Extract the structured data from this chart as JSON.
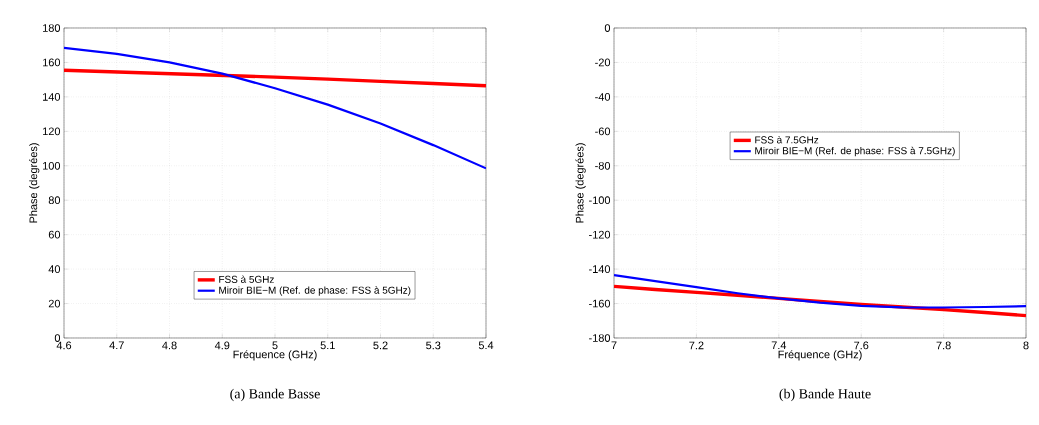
{
  "chart_data": [
    {
      "type": "line",
      "xlabel": "Fréquence (GHz)",
      "ylabel": "Phase (degrées)",
      "annotations": [
        "(a)  Bande Basse"
      ],
      "x": [
        4.6,
        4.7,
        4.8,
        4.9,
        5.0,
        5.1,
        5.2,
        5.3,
        5.4
      ],
      "series": [
        {
          "name": "FSS à 5GHz",
          "color": "#ff0000",
          "values": [
            155.5,
            154.5,
            153.5,
            152.5,
            151.5,
            150.3,
            149,
            147.8,
            146.5
          ]
        },
        {
          "name": "Miroir BIE−M (Ref. de phase: FSS à 5GHz)",
          "color": "#0000ff",
          "values": [
            168.5,
            165,
            160,
            153.5,
            145,
            135.5,
            124.5,
            112,
            98.5
          ]
        }
      ],
      "xlim": [
        4.6,
        5.4
      ],
      "xticks": [
        4.6,
        4.7,
        4.8,
        4.9,
        5,
        5.1,
        5.2,
        5.3,
        5.4
      ],
      "ylim": [
        0,
        180
      ],
      "yticks": [
        0,
        20,
        40,
        60,
        80,
        100,
        120,
        140,
        160,
        180
      ],
      "grid": true,
      "legend": "bottom",
      "line_style": "solid",
      "marker": "none"
    },
    {
      "type": "line",
      "xlabel": "Fréquence (GHz)",
      "ylabel": "Phase (degrées)",
      "annotations": [
        "(b)  Bande Haute"
      ],
      "x": [
        7.0,
        7.1,
        7.2,
        7.3,
        7.4,
        7.5,
        7.6,
        7.7,
        7.8,
        7.9,
        8.0
      ],
      "series": [
        {
          "name": "FSS à 7.5GHz",
          "color": "#ff0000",
          "values": [
            -150,
            -151.8,
            -153.5,
            -155.2,
            -157,
            -158.8,
            -160.5,
            -162,
            -163.5,
            -165.2,
            -167
          ]
        },
        {
          "name": "Miroir BIE−M (Ref. de phase: FSS à 7.5GHz)",
          "color": "#0000ff",
          "values": [
            -143.5,
            -147,
            -150.5,
            -154,
            -157,
            -159.5,
            -161.3,
            -162.2,
            -162.3,
            -162,
            -161.5
          ]
        }
      ],
      "xlim": [
        7,
        8
      ],
      "xticks": [
        7,
        7.2,
        7.4,
        7.6,
        7.8,
        8
      ],
      "ylim": [
        -180,
        0
      ],
      "yticks": [
        -180,
        -160,
        -140,
        -120,
        -100,
        -80,
        -60,
        -40,
        -20,
        0
      ],
      "grid": true,
      "legend": "center",
      "line_style": "solid",
      "marker": "none"
    }
  ]
}
